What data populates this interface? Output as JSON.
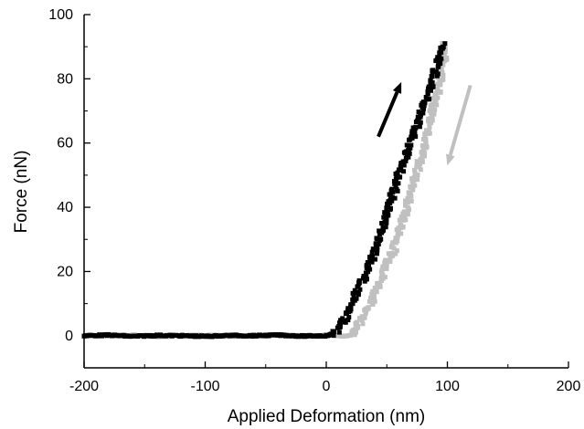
{
  "chart_data": {
    "type": "scatter",
    "title": "",
    "xlabel": "Applied Deformation (nm)",
    "ylabel": "Force (nN)",
    "xlim": [
      -200,
      200
    ],
    "ylim": [
      -10,
      100
    ],
    "x_ticks": [
      -200,
      -100,
      0,
      100,
      200
    ],
    "y_ticks": [
      0,
      20,
      40,
      60,
      80,
      100
    ],
    "grid": false,
    "legend": "none",
    "series": [
      {
        "color": "#000000",
        "direction": "approach",
        "points": [
          [
            -200,
            0
          ],
          [
            -180,
            0.2
          ],
          [
            -160,
            -0.2
          ],
          [
            -140,
            0.1
          ],
          [
            -120,
            0
          ],
          [
            -100,
            -0.2
          ],
          [
            -80,
            0.1
          ],
          [
            -60,
            0
          ],
          [
            -40,
            0.2
          ],
          [
            -20,
            -0.1
          ],
          [
            0,
            0
          ],
          [
            5,
            0.5
          ],
          [
            10,
            2
          ],
          [
            15,
            5
          ],
          [
            20,
            9
          ],
          [
            25,
            13
          ],
          [
            30,
            17
          ],
          [
            35,
            21
          ],
          [
            40,
            26
          ],
          [
            45,
            32
          ],
          [
            50,
            38
          ],
          [
            55,
            44
          ],
          [
            60,
            50
          ],
          [
            65,
            55
          ],
          [
            70,
            60
          ],
          [
            75,
            66
          ],
          [
            80,
            71
          ],
          [
            85,
            76
          ],
          [
            90,
            82
          ],
          [
            95,
            88
          ],
          [
            98,
            91
          ]
        ]
      },
      {
        "color": "#c0c0c0",
        "direction": "retract",
        "points": [
          [
            98,
            91
          ],
          [
            97,
            86
          ],
          [
            95,
            81
          ],
          [
            92,
            76
          ],
          [
            88,
            70
          ],
          [
            85,
            64
          ],
          [
            80,
            58
          ],
          [
            75,
            51
          ],
          [
            70,
            45
          ],
          [
            65,
            38
          ],
          [
            60,
            32
          ],
          [
            55,
            26
          ],
          [
            50,
            22
          ],
          [
            45,
            17
          ],
          [
            40,
            13
          ],
          [
            35,
            9
          ],
          [
            30,
            5
          ],
          [
            25,
            2
          ],
          [
            20,
            0
          ],
          [
            10,
            0
          ],
          [
            0,
            0.1
          ],
          [
            -20,
            -0.1
          ],
          [
            -40,
            0.2
          ],
          [
            -60,
            0
          ],
          [
            -80,
            -0.1
          ],
          [
            -100,
            0.1
          ],
          [
            -120,
            0
          ],
          [
            -140,
            -0.2
          ],
          [
            -160,
            0.2
          ],
          [
            -180,
            0
          ],
          [
            -200,
            0
          ]
        ]
      }
    ],
    "annotations": [
      {
        "type": "arrow",
        "color": "#000000",
        "meaning": "loading",
        "from": [
          43,
          62
        ],
        "to": [
          62,
          79
        ]
      },
      {
        "type": "arrow",
        "color": "#c0c0c0",
        "meaning": "unloading",
        "from": [
          119,
          78
        ],
        "to": [
          100,
          53
        ]
      }
    ]
  }
}
